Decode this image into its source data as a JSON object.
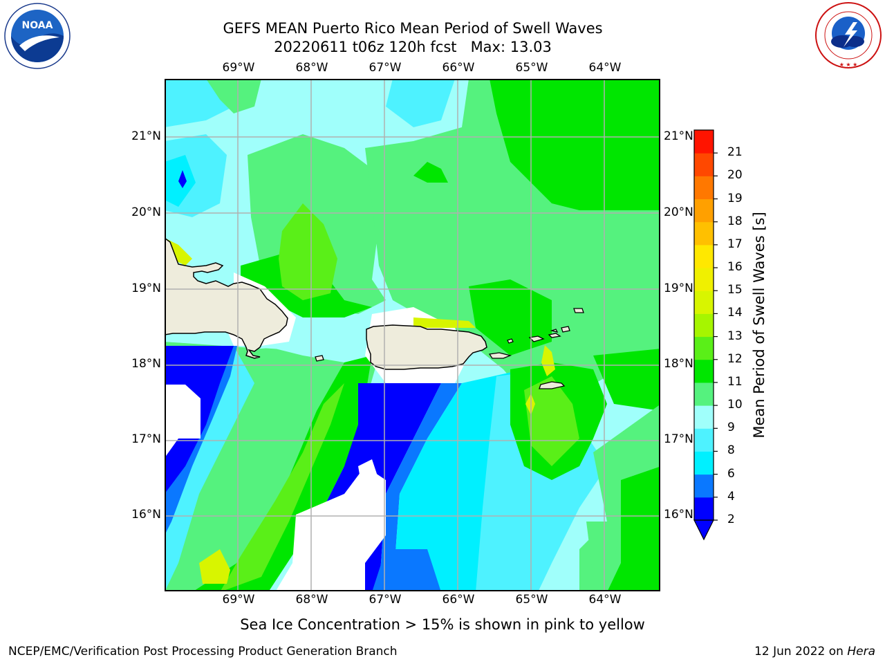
{
  "title": {
    "line1": "GEFS MEAN Puerto Rico Mean Period of Swell Waves",
    "line2": "20220611 t06z 120h fcst   Max: 13.03"
  },
  "logos": {
    "left": "NOAA",
    "right": "NATIONAL WEATHER SERVICE"
  },
  "map": {
    "lon_labels": [
      "69°W",
      "68°W",
      "67°W",
      "66°W",
      "65°W",
      "64°W"
    ],
    "lat_labels": [
      "21°N",
      "20°N",
      "19°N",
      "18°N",
      "17°N",
      "16°N"
    ],
    "colors": {
      "land": "#eeecdc",
      "frame": "#000000",
      "grid": "#b0b0b0"
    }
  },
  "colorbar": {
    "title": "Mean Period of Swell Waves [s]",
    "ticks": [
      "2",
      "4",
      "6",
      "8",
      "9",
      "10",
      "11",
      "12",
      "13",
      "14",
      "15",
      "16",
      "17",
      "18",
      "19",
      "20",
      "21"
    ],
    "colors": [
      "#0000ff",
      "#0a78ff",
      "#00f0ff",
      "#4ef2ff",
      "#a0fffb",
      "#55f27e",
      "#00e600",
      "#5aef18",
      "#a6f500",
      "#d8f500",
      "#f0f000",
      "#ffe800",
      "#ffc000",
      "#ffa000",
      "#ff7800",
      "#ff4800",
      "#ff1400"
    ],
    "under_color": "#0000ff"
  },
  "subnote": "Sea Ice Concentration > 15% is shown in pink to yellow",
  "footer": {
    "left": "NCEP/EMC/Verification Post Processing Product Generation Branch",
    "date": "12 Jun 2022 on ",
    "host": "Hera"
  }
}
